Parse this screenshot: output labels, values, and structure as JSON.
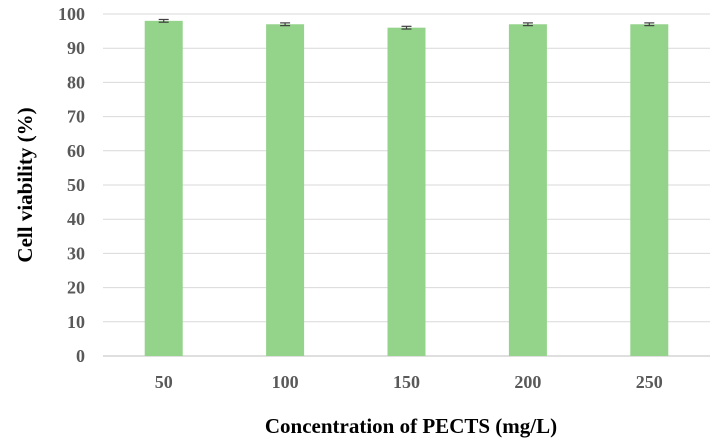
{
  "chart_data": {
    "type": "bar",
    "title": "",
    "xlabel": "Concentration of PECTS (mg/L)",
    "ylabel": "Cell viability (%)",
    "categories": [
      "50",
      "100",
      "150",
      "200",
      "250"
    ],
    "values": [
      98,
      97,
      96,
      97,
      97
    ],
    "errors": [
      0.4,
      0.4,
      0.4,
      0.4,
      0.4
    ],
    "ylim": [
      0,
      100
    ],
    "yticks": [
      "0",
      "10",
      "20",
      "30",
      "40",
      "50",
      "60",
      "70",
      "80",
      "90",
      "100"
    ],
    "grid": true,
    "legend": "none",
    "colors": {
      "bar": "#94d38a",
      "grid": "#d9d9d9",
      "tick_text": "#595959",
      "error_bar": "#404040"
    }
  }
}
